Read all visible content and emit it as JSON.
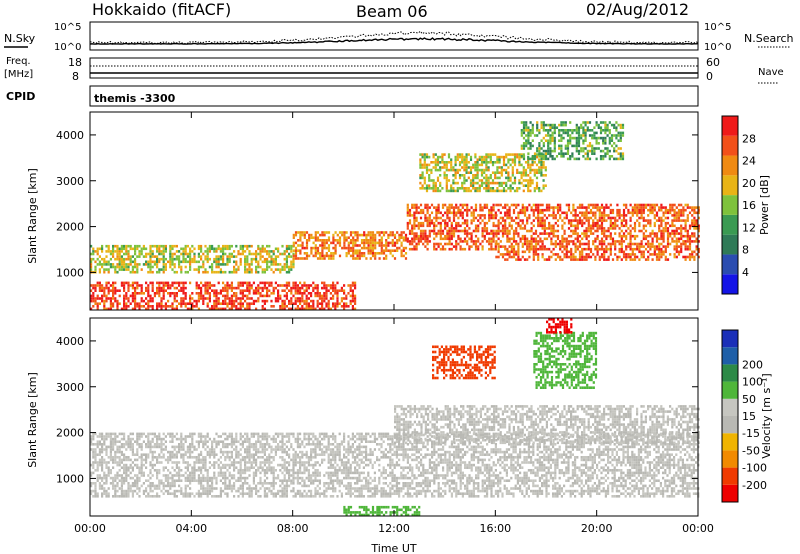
{
  "header": {
    "title_left": "Hokkaido (fitACF)",
    "title_center": "Beam 06",
    "title_right": "02/Aug/2012"
  },
  "top_strips": {
    "nsky_label": "N.Sky",
    "nsky_ticks": [
      "10^5",
      "10^0"
    ],
    "nsearch_label": "N.Search",
    "nsearch_ticks": [
      "10^5",
      "10^0"
    ],
    "freq_label_line1": "Freq.",
    "freq_label_line2": "[MHz]",
    "freq_ticks": [
      "18",
      "8"
    ],
    "nave_label": "Nave",
    "nave_ticks": [
      "60",
      "0"
    ],
    "cpid_label": "CPID",
    "cpid_value": "themis -3300"
  },
  "colors": {
    "power": [
      "#1414e6",
      "#2a4cb0",
      "#2f7a57",
      "#3a9a52",
      "#7ec23c",
      "#e8b417",
      "#f08a12",
      "#f2501a",
      "#ef1a1a"
    ],
    "velocity": [
      "#ee0000",
      "#f03a00",
      "#f28a00",
      "#f0b400",
      "#b9b9b4",
      "#c6c6c0",
      "#4fb63a",
      "#2c8a47",
      "#1e5fa8",
      "#1a2fb8"
    ]
  },
  "chart_data": [
    {
      "type": "heatmap",
      "ylabel": "Slant Range [km]",
      "ylim": [
        180,
        4500
      ],
      "yticks": [
        "1000",
        "2000",
        "3000",
        "4000"
      ],
      "xticks": [
        "00:00",
        "04:00",
        "08:00",
        "12:00",
        "16:00",
        "20:00",
        "00:00"
      ],
      "colorbar": {
        "label": "Power [dB]",
        "ticks": [
          "4",
          "8",
          "12",
          "16",
          "20",
          "24",
          "28"
        ],
        "range": [
          0,
          32
        ]
      },
      "bands": [
        {
          "t0": 0.0,
          "t1": 10.5,
          "r0": 200,
          "r1": 800,
          "value": 28
        },
        {
          "t0": 0.0,
          "t1": 8.0,
          "r0": 1000,
          "r1": 1600,
          "value": 18
        },
        {
          "t0": 8.0,
          "t1": 12.5,
          "r0": 1300,
          "r1": 1900,
          "value": 24
        },
        {
          "t0": 12.5,
          "t1": 16.0,
          "r0": 1500,
          "r1": 2500,
          "value": 26
        },
        {
          "t0": 16.0,
          "t1": 24.0,
          "r0": 1300,
          "r1": 2500,
          "value": 26
        },
        {
          "t0": 13.0,
          "t1": 18.0,
          "r0": 2800,
          "r1": 3600,
          "value": 18
        },
        {
          "t0": 17.0,
          "t1": 21.0,
          "r0": 3500,
          "r1": 4300,
          "value": 14
        }
      ]
    },
    {
      "type": "heatmap",
      "ylabel": "Slant Range [km]",
      "ylim": [
        180,
        4500
      ],
      "yticks": [
        "1000",
        "2000",
        "3000",
        "4000"
      ],
      "xticks": [
        "00:00",
        "04:00",
        "08:00",
        "12:00",
        "16:00",
        "20:00",
        "00:00"
      ],
      "xlabel": "Time UT",
      "colorbar": {
        "label": "Velocity [m s⁻¹]",
        "ticks": [
          "-200",
          "-100",
          "-50",
          "-15",
          "15",
          "50",
          "100",
          "200"
        ],
        "range": [
          -250,
          250
        ]
      },
      "bands": [
        {
          "t0": 0.0,
          "t1": 24.0,
          "r0": 600,
          "r1": 2000,
          "value": 0
        },
        {
          "t0": 12.0,
          "t1": 24.0,
          "r0": 1800,
          "r1": 2600,
          "value": 0
        },
        {
          "t0": 13.5,
          "t1": 16.0,
          "r0": 3200,
          "r1": 3900,
          "value": -150
        },
        {
          "t0": 17.5,
          "t1": 20.0,
          "r0": 3000,
          "r1": 4200,
          "value": 40
        },
        {
          "t0": 18.0,
          "t1": 19.0,
          "r0": 4200,
          "r1": 4500,
          "value": -220
        },
        {
          "t0": 10.0,
          "t1": 13.0,
          "r0": 180,
          "r1": 400,
          "value": 30
        }
      ]
    }
  ]
}
